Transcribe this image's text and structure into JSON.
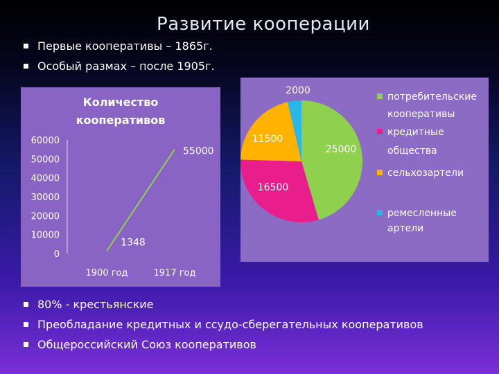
{
  "slide": {
    "title": "Развитие  кооперации",
    "top_bullets": [
      "Первые кооперативы – 1865г.",
      "Особый размах – после 1905г."
    ],
    "bottom_bullets": [
      "80% - крестьянские",
      "Преобладание кредитных и ссудо-сберегательных кооперативов",
      "Общероссийский Союз кооперативов"
    ]
  },
  "chart_data": [
    {
      "type": "line",
      "title_lines": [
        "Количество",
        "кооперативов"
      ],
      "categories": [
        "1900 год",
        "1917 год"
      ],
      "values": [
        1348,
        55000
      ],
      "data_labels": [
        "1348",
        "55000"
      ],
      "ylim": [
        0,
        60000
      ],
      "yticks": [
        0,
        10000,
        20000,
        30000,
        40000,
        50000,
        60000
      ],
      "ytick_labels": [
        "0",
        "10000",
        "20000",
        "30000",
        "40000",
        "50000",
        "60000"
      ],
      "grid": false,
      "line_color": "#8fd14f"
    },
    {
      "type": "pie",
      "slices": [
        {
          "label": "потребительские кооперативы",
          "legend_lines": [
            "потребительские",
            "кооперативы"
          ],
          "value": 25000,
          "value_label": "25000",
          "color": "#8fd14f"
        },
        {
          "label": "кредитные общества",
          "legend_lines": [
            "кредитные",
            "общества"
          ],
          "value": 16500,
          "value_label": "16500",
          "color": "#e91e8c"
        },
        {
          "label": "сельхозартели",
          "legend_lines": [
            "сельхозартели"
          ],
          "value": 11500,
          "value_label": "11500",
          "color": "#ffb300"
        },
        {
          "label": "ремесленные артели",
          "legend_lines": [
            "ремесленные",
            "артели"
          ],
          "value": 2000,
          "value_label": "2000",
          "color": "#29b6e8"
        }
      ],
      "legend_position": "right"
    }
  ]
}
